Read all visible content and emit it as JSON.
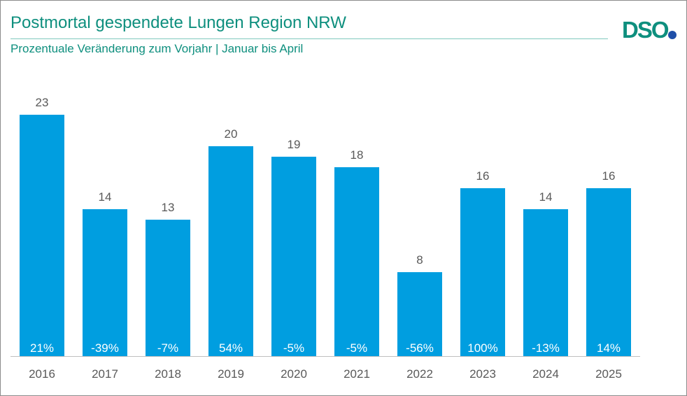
{
  "title": "Postmortal gespendete Lungen Region NRW",
  "subtitle": "Prozentuale Veränderung zum Vorjahr | Januar  bis April",
  "logo": {
    "text": "DSO",
    "colors": {
      "text": "#0e8f7e",
      "dot": "#1f4fa8"
    }
  },
  "colors": {
    "bar": "#009ee0",
    "value_label": "#595959",
    "pct_label": "#ffffff",
    "axis": "#bfbfbf",
    "tick": "#595959"
  },
  "chart_data": {
    "type": "bar",
    "title": "Postmortal gespendete Lungen Region NRW",
    "subtitle": "Prozentuale Veränderung zum Vorjahr | Januar  bis April",
    "categories": [
      "2016",
      "2017",
      "2018",
      "2019",
      "2020",
      "2021",
      "2022",
      "2023",
      "2024",
      "2025"
    ],
    "values": [
      23,
      14,
      13,
      20,
      19,
      18,
      8,
      16,
      14,
      16
    ],
    "change_labels": [
      "21%",
      "-39%",
      "-7%",
      "54%",
      "-5%",
      "-5%",
      "-56%",
      "100%",
      "-13%",
      "14%"
    ],
    "ylim": [
      0,
      25
    ],
    "grid": false,
    "legend": "none"
  }
}
